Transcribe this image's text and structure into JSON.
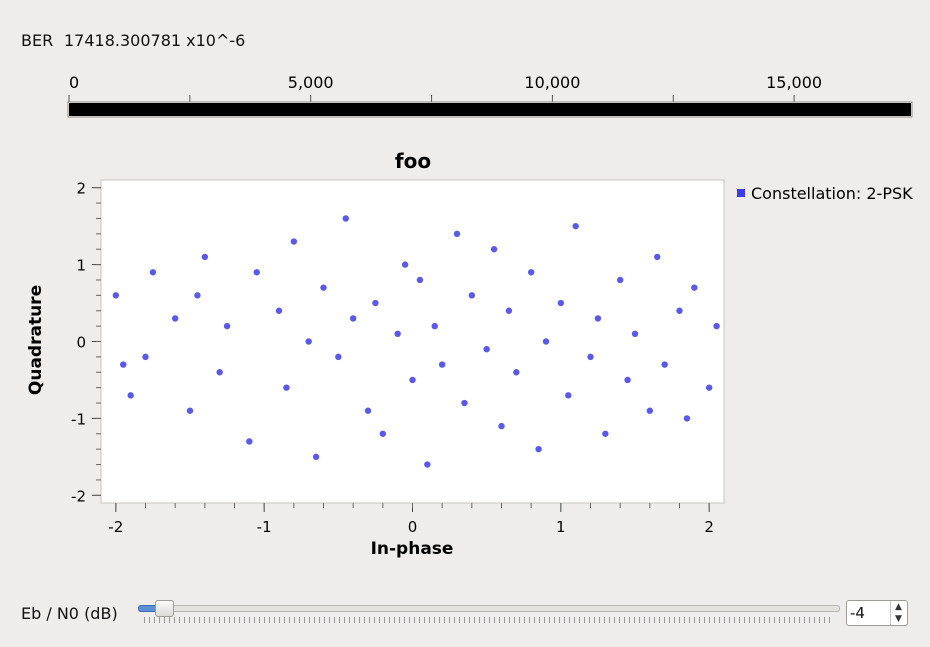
{
  "ber": {
    "label": "BER",
    "value": "17418.300781 x10^-6",
    "scale_ticks": [
      "0",
      "5,000",
      "10,000",
      "15,000"
    ],
    "scale_min": 0,
    "scale_max": 17418.300781,
    "bar_color": "#000000"
  },
  "slider": {
    "label": "Eb / N0 (dB)",
    "value": "-4",
    "accent": "#5b8fd6"
  },
  "chart_data": {
    "type": "scatter",
    "title": "foo",
    "xlabel": "In-phase",
    "ylabel": "Quadrature",
    "xlim": [
      -2.1,
      2.1
    ],
    "ylim": [
      -2.1,
      2.1
    ],
    "xticks": [
      "-2",
      "-1",
      "0",
      "1",
      "2"
    ],
    "yticks": [
      "2",
      "1",
      "0",
      "-1",
      "-2"
    ],
    "legend": "top-right",
    "series": [
      {
        "name": "Constellation: 2-PSK",
        "color": "#3c3ce6",
        "points": [
          [
            -1.9,
            -0.7
          ],
          [
            -1.8,
            -0.2
          ],
          [
            -1.6,
            0.3
          ],
          [
            -1.5,
            -0.9
          ],
          [
            -1.45,
            0.6
          ],
          [
            -1.4,
            1.1
          ],
          [
            -1.3,
            -0.4
          ],
          [
            -1.25,
            0.2
          ],
          [
            -1.1,
            -1.3
          ],
          [
            -1.05,
            0.9
          ],
          [
            -0.9,
            0.4
          ],
          [
            -0.85,
            -0.6
          ],
          [
            -0.8,
            1.3
          ],
          [
            -0.7,
            0.0
          ],
          [
            -0.65,
            -1.5
          ],
          [
            -0.6,
            0.7
          ],
          [
            -0.5,
            -0.2
          ],
          [
            -0.45,
            1.6
          ],
          [
            -0.4,
            0.3
          ],
          [
            -0.3,
            -0.9
          ],
          [
            -0.25,
            0.5
          ],
          [
            -0.2,
            -1.2
          ],
          [
            -0.1,
            0.1
          ],
          [
            -0.05,
            1.0
          ],
          [
            0.0,
            -0.5
          ],
          [
            0.05,
            0.8
          ],
          [
            0.1,
            -1.6
          ],
          [
            0.15,
            0.2
          ],
          [
            0.2,
            -0.3
          ],
          [
            0.3,
            1.4
          ],
          [
            0.35,
            -0.8
          ],
          [
            0.4,
            0.6
          ],
          [
            0.5,
            -0.1
          ],
          [
            0.55,
            1.2
          ],
          [
            0.6,
            -1.1
          ],
          [
            0.65,
            0.4
          ],
          [
            0.7,
            -0.4
          ],
          [
            0.8,
            0.9
          ],
          [
            0.85,
            -1.4
          ],
          [
            0.9,
            0.0
          ],
          [
            1.0,
            0.5
          ],
          [
            1.05,
            -0.7
          ],
          [
            1.1,
            1.5
          ],
          [
            1.2,
            -0.2
          ],
          [
            1.25,
            0.3
          ],
          [
            1.3,
            -1.2
          ],
          [
            1.4,
            0.8
          ],
          [
            1.45,
            -0.5
          ],
          [
            1.5,
            0.1
          ],
          [
            1.6,
            -0.9
          ],
          [
            1.65,
            1.1
          ],
          [
            1.7,
            -0.3
          ],
          [
            1.8,
            0.4
          ],
          [
            1.85,
            -1.0
          ],
          [
            1.9,
            0.7
          ],
          [
            2.0,
            -0.6
          ],
          [
            2.05,
            0.2
          ],
          [
            -2.0,
            0.6
          ],
          [
            -1.95,
            -0.3
          ],
          [
            -1.75,
            0.9
          ]
        ]
      }
    ]
  }
}
